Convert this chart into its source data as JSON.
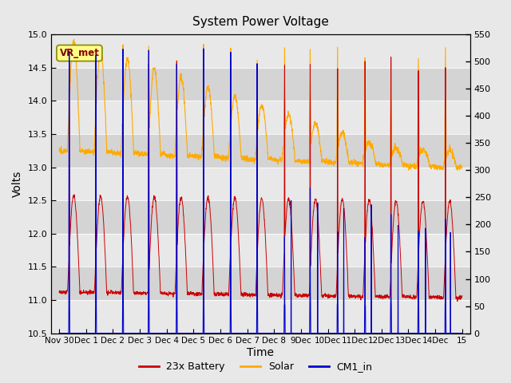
{
  "title": "System Power Voltage",
  "xlabel": "Time",
  "ylabel": "Volts",
  "ylim_left": [
    10.5,
    15.0
  ],
  "ylim_right": [
    0,
    550
  ],
  "yticks_left": [
    10.5,
    11.0,
    11.5,
    12.0,
    12.5,
    13.0,
    13.5,
    14.0,
    14.5,
    15.0
  ],
  "yticks_right": [
    0,
    50,
    100,
    150,
    200,
    250,
    300,
    350,
    400,
    450,
    500,
    550
  ],
  "bg_color": "#e8e8e8",
  "plot_bg_color": "#d8d8d8",
  "band_color_light": "#e8e8e8",
  "band_color_dark": "#d0d0d0",
  "battery_color": "#cc0000",
  "solar_color": "#ffaa00",
  "cm1_color": "#0000cc",
  "annotation_box_color": "#ffff88",
  "annotation_text_color": "#880000",
  "annotation_text": "VR_met",
  "legend_labels": [
    "23x Battery",
    "Solar",
    "CM1_in"
  ],
  "xtick_labels": [
    "Nov 30",
    "Dec 1",
    "Dec 2",
    "Dec 3",
    "Dec 4",
    "Dec 5",
    "Dec 6",
    "Dec 7",
    "Dec 8",
    "9Dec",
    "10Dec",
    "11Dec",
    "12Dec",
    "13Dec",
    "14Dec",
    "15"
  ],
  "n_days": 15,
  "seed": 12345
}
